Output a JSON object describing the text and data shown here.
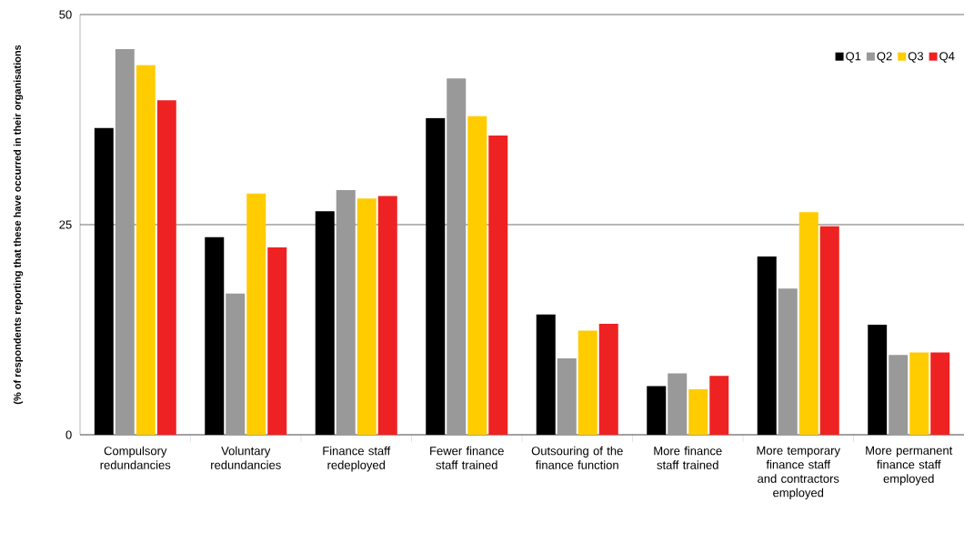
{
  "chart_data": {
    "type": "bar",
    "ylabel": "(% of respondents reporting that these have occurred in their organisations",
    "categories": [
      "Compulsory redundancies",
      "Voluntary redundancies",
      "Finance staff redeployed",
      "Fewer finance staff trained",
      "Outsouring of the finance function",
      "More finance staff trained",
      "More temporary finance staff and contractors employed",
      "More permanent finance staff employed"
    ],
    "series": [
      {
        "name": "Q1",
        "color": "#000000",
        "values": [
          36.5,
          23.5,
          26.6,
          37.7,
          14.3,
          5.8,
          21.2,
          13.1
        ]
      },
      {
        "name": "Q2",
        "color": "#999999",
        "values": [
          45.9,
          16.8,
          29.1,
          42.4,
          9.1,
          7.3,
          17.4,
          9.5
        ]
      },
      {
        "name": "Q3",
        "color": "#ffcc00",
        "values": [
          44.0,
          28.7,
          28.1,
          37.9,
          12.4,
          5.4,
          26.5,
          9.8
        ]
      },
      {
        "name": "Q4",
        "color": "#ee2222",
        "values": [
          39.8,
          22.3,
          28.4,
          35.6,
          13.2,
          7.0,
          24.8,
          9.8
        ]
      }
    ],
    "ylim": [
      0,
      50
    ],
    "yticks": [
      0,
      25,
      50
    ],
    "grid": "y",
    "legend": "top right"
  }
}
